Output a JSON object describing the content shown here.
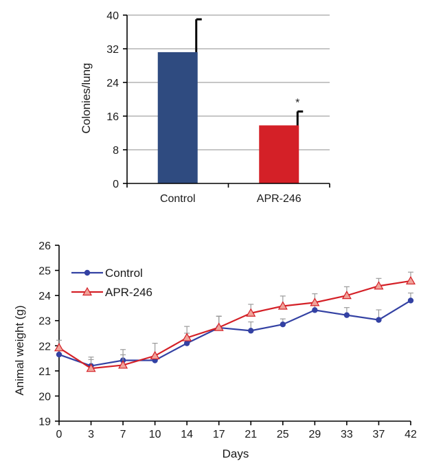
{
  "chart_data": [
    {
      "type": "bar",
      "title": "",
      "xlabel": "",
      "ylabel": "Colonies/lung",
      "ylim": [
        0,
        40
      ],
      "yticks": [
        "0",
        "8",
        "16",
        "24",
        "32",
        "40"
      ],
      "grid": true,
      "categories": [
        "Control",
        "APR-246"
      ],
      "values": [
        31.2,
        13.8
      ],
      "errors": [
        7.8,
        3.3
      ],
      "colors": [
        "#2f4b80",
        "#d42027"
      ],
      "annotations": [
        {
          "category": "APR-246",
          "text": "*"
        }
      ]
    },
    {
      "type": "line",
      "title": "",
      "xlabel": "Days",
      "ylabel": "Animal weight (g)",
      "ylim": [
        19,
        26
      ],
      "yticks": [
        "19",
        "20",
        "21",
        "22",
        "23",
        "24",
        "25",
        "26"
      ],
      "x": [
        "0",
        "3",
        "7",
        "10",
        "14",
        "17",
        "21",
        "25",
        "29",
        "33",
        "37",
        "42"
      ],
      "grid": false,
      "legend_position": "top-left",
      "series": [
        {
          "name": "Control",
          "marker": "circle",
          "color": "#3341a3",
          "values": [
            21.65,
            21.2,
            21.42,
            21.42,
            22.1,
            22.72,
            22.6,
            22.85,
            23.42,
            23.22,
            23.03,
            23.8
          ],
          "errors": [
            0.25,
            0.25,
            0.22,
            0.12,
            0.4,
            0.45,
            0.35,
            0.22,
            0.3,
            0.3,
            0.4,
            0.3
          ]
        },
        {
          "name": "APR-246",
          "marker": "triangle",
          "color": "#d42027",
          "values": [
            21.92,
            21.1,
            21.23,
            21.6,
            22.32,
            22.73,
            23.3,
            23.58,
            23.72,
            24.0,
            24.38,
            24.58
          ],
          "errors": [
            0.3,
            0.45,
            0.62,
            0.5,
            0.45,
            0.45,
            0.35,
            0.4,
            0.35,
            0.35,
            0.3,
            0.35
          ]
        }
      ]
    }
  ]
}
